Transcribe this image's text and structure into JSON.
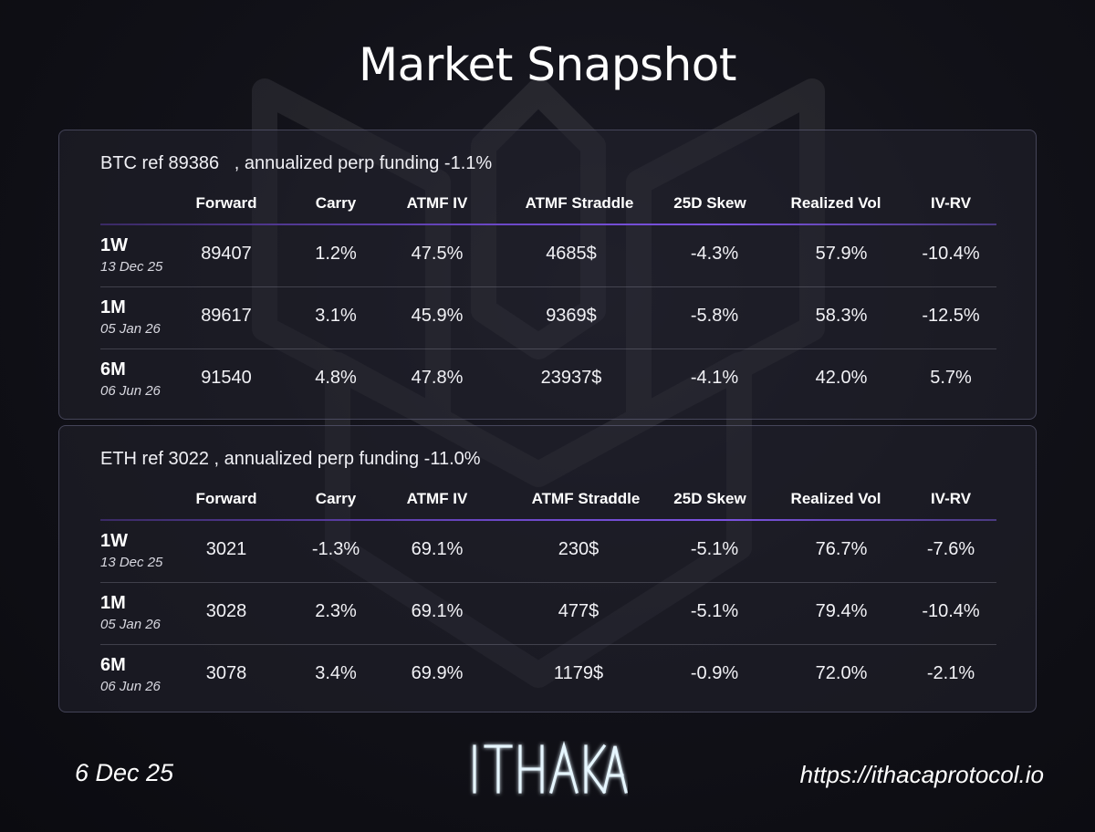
{
  "title": "Market Snapshot",
  "columns": [
    "Forward",
    "Carry",
    "ATMF IV",
    "ATMF Straddle",
    "25D Skew",
    "Realized Vol",
    "IV-RV"
  ],
  "btc": {
    "header": "BTC ref 89386   , annualized perp funding -1.1%",
    "columns": [
      "Forward",
      "Carry",
      "ATMF IV",
      "ATMF Straddle",
      "25D Skew",
      "Realized Vol",
      "IV-RV"
    ],
    "rows": [
      {
        "tenor": "1W",
        "expiry": "13 Dec 25",
        "values": [
          "89407",
          "1.2%",
          "47.5%",
          "4685$",
          "-4.3%",
          "57.9%",
          "-10.4%"
        ]
      },
      {
        "tenor": "1M",
        "expiry": "05 Jan 26",
        "values": [
          "89617",
          "3.1%",
          "45.9%",
          "9369$",
          "-5.8%",
          "58.3%",
          "-12.5%"
        ]
      },
      {
        "tenor": "6M",
        "expiry": "06 Jun 26",
        "values": [
          "91540",
          "4.8%",
          "47.8%",
          "23937$",
          "-4.1%",
          "42.0%",
          "5.7%"
        ]
      }
    ]
  },
  "eth": {
    "header": "ETH ref 3022 , annualized perp funding -11.0%",
    "columns": [
      "Forward",
      "Carry",
      "ATMF IV",
      "ATMF Straddle",
      "25D Skew",
      "Realized Vol",
      "IV-RV"
    ],
    "rows": [
      {
        "tenor": "1W",
        "expiry": "13 Dec 25",
        "values": [
          "3021",
          "-1.3%",
          "69.1%",
          "230$",
          "-5.1%",
          "76.7%",
          "-7.6%"
        ]
      },
      {
        "tenor": "1M",
        "expiry": "05 Jan 26",
        "values": [
          "3028",
          "2.3%",
          "69.1%",
          "477$",
          "-5.1%",
          "79.4%",
          "-10.4%"
        ]
      },
      {
        "tenor": "6M",
        "expiry": "06 Jun 26",
        "values": [
          "3078",
          "3.4%",
          "69.9%",
          "1179$",
          "-0.9%",
          "72.0%",
          "-2.1%"
        ]
      }
    ]
  },
  "footer": {
    "date": "6 Dec 25",
    "url": "https://ithacaprotocol.io",
    "logo_text": "ITHAKA"
  },
  "colors": {
    "accent": "#7b52e0",
    "background": "#121219",
    "logo_glow": "#9ad8ff"
  }
}
